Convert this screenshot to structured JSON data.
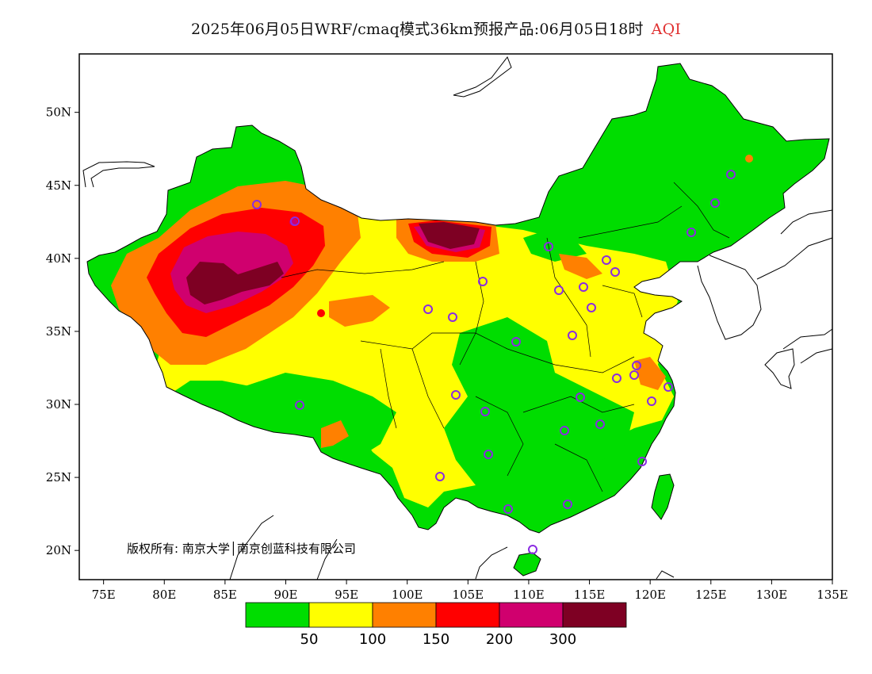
{
  "title": {
    "main": "2025年06月05日WRF/cmaq模式36km预报产品:06月05日18时",
    "variable": "AQI",
    "variable_color": "#e03030"
  },
  "map": {
    "lon_range": [
      73,
      135
    ],
    "lat_range": [
      18,
      54
    ],
    "lon_ticks": [
      "75E",
      "80E",
      "85E",
      "90E",
      "95E",
      "100E",
      "105E",
      "110E",
      "115E",
      "120E",
      "125E",
      "130E",
      "135E"
    ],
    "lat_ticks": [
      "20N",
      "25N",
      "30N",
      "35N",
      "40N",
      "45N",
      "50N"
    ],
    "copyright": "版权所有: 南京大学│南京创蓝科技有限公司"
  },
  "colorbar": {
    "colors": [
      "#00dd00",
      "#ffff00",
      "#ff8000",
      "#ff0000",
      "#d0006e",
      "#7e0023"
    ],
    "labels": [
      "50",
      "100",
      "150",
      "200",
      "300"
    ]
  },
  "legend_colors": {
    "good": "#00dd00",
    "moderate": "#ffff00",
    "unhealthy_sensitive": "#ff8000",
    "unhealthy": "#ff0000",
    "very_unhealthy": "#d0006e",
    "hazardous": "#7e0023",
    "station_marker": "#8a2be2"
  }
}
